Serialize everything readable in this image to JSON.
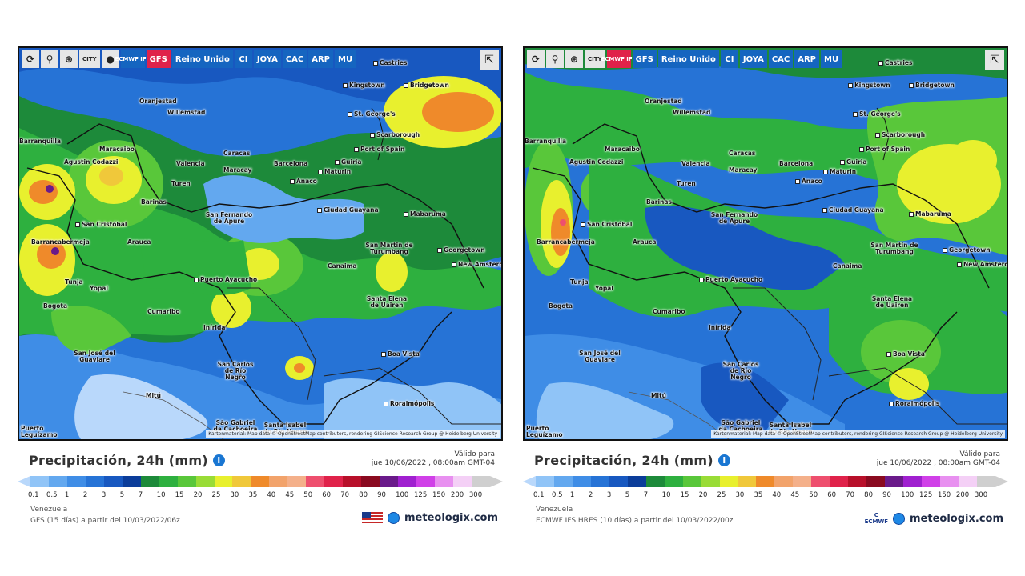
{
  "toolbar": {
    "reload_icon": "reload-icon",
    "pin_icon": "location-pin-icon",
    "zoom_icon": "zoom-icon",
    "city_label": "CITY",
    "dot_icon": "dot-icon",
    "share_icon": "share-icon",
    "models": [
      "Reino Unido",
      "CI",
      "JOYA",
      "CAC",
      "ARP",
      "MU"
    ]
  },
  "left": {
    "model_labels": [
      "ECMWF IFS",
      "GFS"
    ],
    "active_model": "GFS",
    "title": "Precipitación, 24h (mm)",
    "valid_label": "Válido para",
    "valid_time": "jue 10/06/2022 , 08:00am GMT-04",
    "region": "Venezuela",
    "source": "GFS  (15 días)  a partir del 10/03/2022/06z",
    "brand": "meteologix.com",
    "brand_flag": "us-flag-icon"
  },
  "right": {
    "model_labels": [
      "ECMWF IFS",
      "GFS"
    ],
    "active_model": "ECMWF IFS",
    "title": "Precipitación, 24h (mm)",
    "valid_label": "Válido para",
    "valid_time": "jue 10/06/2022 , 08:00am GMT-04",
    "region": "Venezuela",
    "source": "ECMWF IFS HRES  (10 días)  a partir del 10/03/2022/00z",
    "brand": "meteologix.com",
    "brand_logo": "ECMWF"
  },
  "attribution": "Kartenmaterial: Map data © OpenStreetMap contributors, rendering GIScience Research Group @ Heidelberg University",
  "scale": {
    "ticks": [
      "0.1",
      "0.5",
      "1",
      "2",
      "3",
      "5",
      "7",
      "10",
      "15",
      "20",
      "25",
      "30",
      "35",
      "40",
      "45",
      "50",
      "60",
      "70",
      "80",
      "90",
      "100",
      "125",
      "150",
      "200",
      "300"
    ],
    "colors": [
      "#b9d8fb",
      "#90c4f7",
      "#63a8ef",
      "#3f8de6",
      "#2673d6",
      "#1858c0",
      "#0b3d9a",
      "#1d8a3a",
      "#2eb03f",
      "#59c73a",
      "#99dc36",
      "#e8f02e",
      "#f0c83a",
      "#ef8a2a",
      "#f2a36b",
      "#f4b08a",
      "#ee4f6e",
      "#e0224a",
      "#b8102a",
      "#8a0a20",
      "#6a1a8a",
      "#a020d0",
      "#d040e8",
      "#e890f0",
      "#f4d0f6",
      "#cfcfcf"
    ]
  },
  "cities": [
    {
      "name": "Castries"
    },
    {
      "name": "Kingstown"
    },
    {
      "name": "Bridgetown"
    },
    {
      "name": "Oranjestad"
    },
    {
      "name": "Willemstad"
    },
    {
      "name": "St. George's"
    },
    {
      "name": "Scarborough"
    },
    {
      "name": "Port of Spain"
    },
    {
      "name": "Barranquilla"
    },
    {
      "name": "Maracaibo"
    },
    {
      "name": "Caracas"
    },
    {
      "name": "Valencia"
    },
    {
      "name": "Barcelona"
    },
    {
      "name": "Maracay"
    },
    {
      "name": "Maturin"
    },
    {
      "name": "Guiria"
    },
    {
      "name": "Agustin Codazzi"
    },
    {
      "name": "Turen"
    },
    {
      "name": "Anaco"
    },
    {
      "name": "Barinas"
    },
    {
      "name": "San Fernando de Apure"
    },
    {
      "name": "Ciudad Guayana"
    },
    {
      "name": "Mabaruma"
    },
    {
      "name": "San Cristóbal"
    },
    {
      "name": "Barrancabermeja"
    },
    {
      "name": "Arauca"
    },
    {
      "name": "San Martin de Turumbang"
    },
    {
      "name": "Georgetown"
    },
    {
      "name": "New Amsterdam"
    },
    {
      "name": "Canaima"
    },
    {
      "name": "Tunja"
    },
    {
      "name": "Yopal"
    },
    {
      "name": "Puerto Ayacucho"
    },
    {
      "name": "Bogota"
    },
    {
      "name": "Santa Elena de Uairen"
    },
    {
      "name": "Cumaribo"
    },
    {
      "name": "Inírida"
    },
    {
      "name": "Boa Vista"
    },
    {
      "name": "San José del Guaviare"
    },
    {
      "name": "San Carlos de Río Negro"
    },
    {
      "name": "Mitú"
    },
    {
      "name": "Roraimópolis"
    },
    {
      "name": "São Gabriel da Cachoeira"
    },
    {
      "name": "Santa Isabel do Rio Negro"
    },
    {
      "name": "Puerto Leguízamo"
    }
  ]
}
